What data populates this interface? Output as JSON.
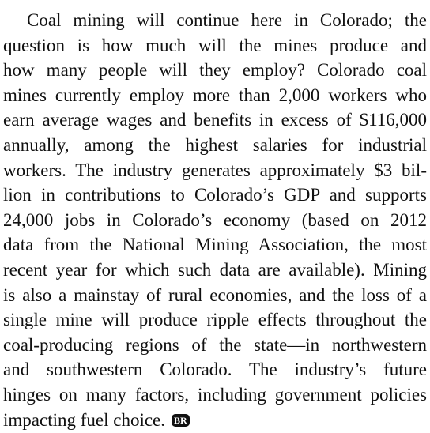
{
  "document": {
    "paragraph": {
      "lines": [
        "Coal mining will continue here in Colorado; the",
        "question is how much will the mines produce and",
        "how many people will they employ? Colorado coal",
        "mines currently employ more than 2,000 workers who",
        "earn average wages and benefits in excess of $116,000",
        "annually, among the highest salaries for industrial",
        "workers. The industry generates approximately $3 bil-",
        "lion in contributions to Colorado’s GDP and supports",
        "24,000 jobs in Colorado’s economy (based on 2012",
        "data from the National Mining Association, the most",
        "recent year for which such data are available). Mining",
        "is also a mainstay of rural economies, and the loss of a",
        "single mine will produce ripple effects throughout the",
        "coal-producing regions of the state—in northwestern",
        "and southwestern Colorado. The industry’s future",
        "hinges on many factors, including government policies",
        "impacting fuel choice."
      ],
      "end_mark": "BR"
    }
  }
}
